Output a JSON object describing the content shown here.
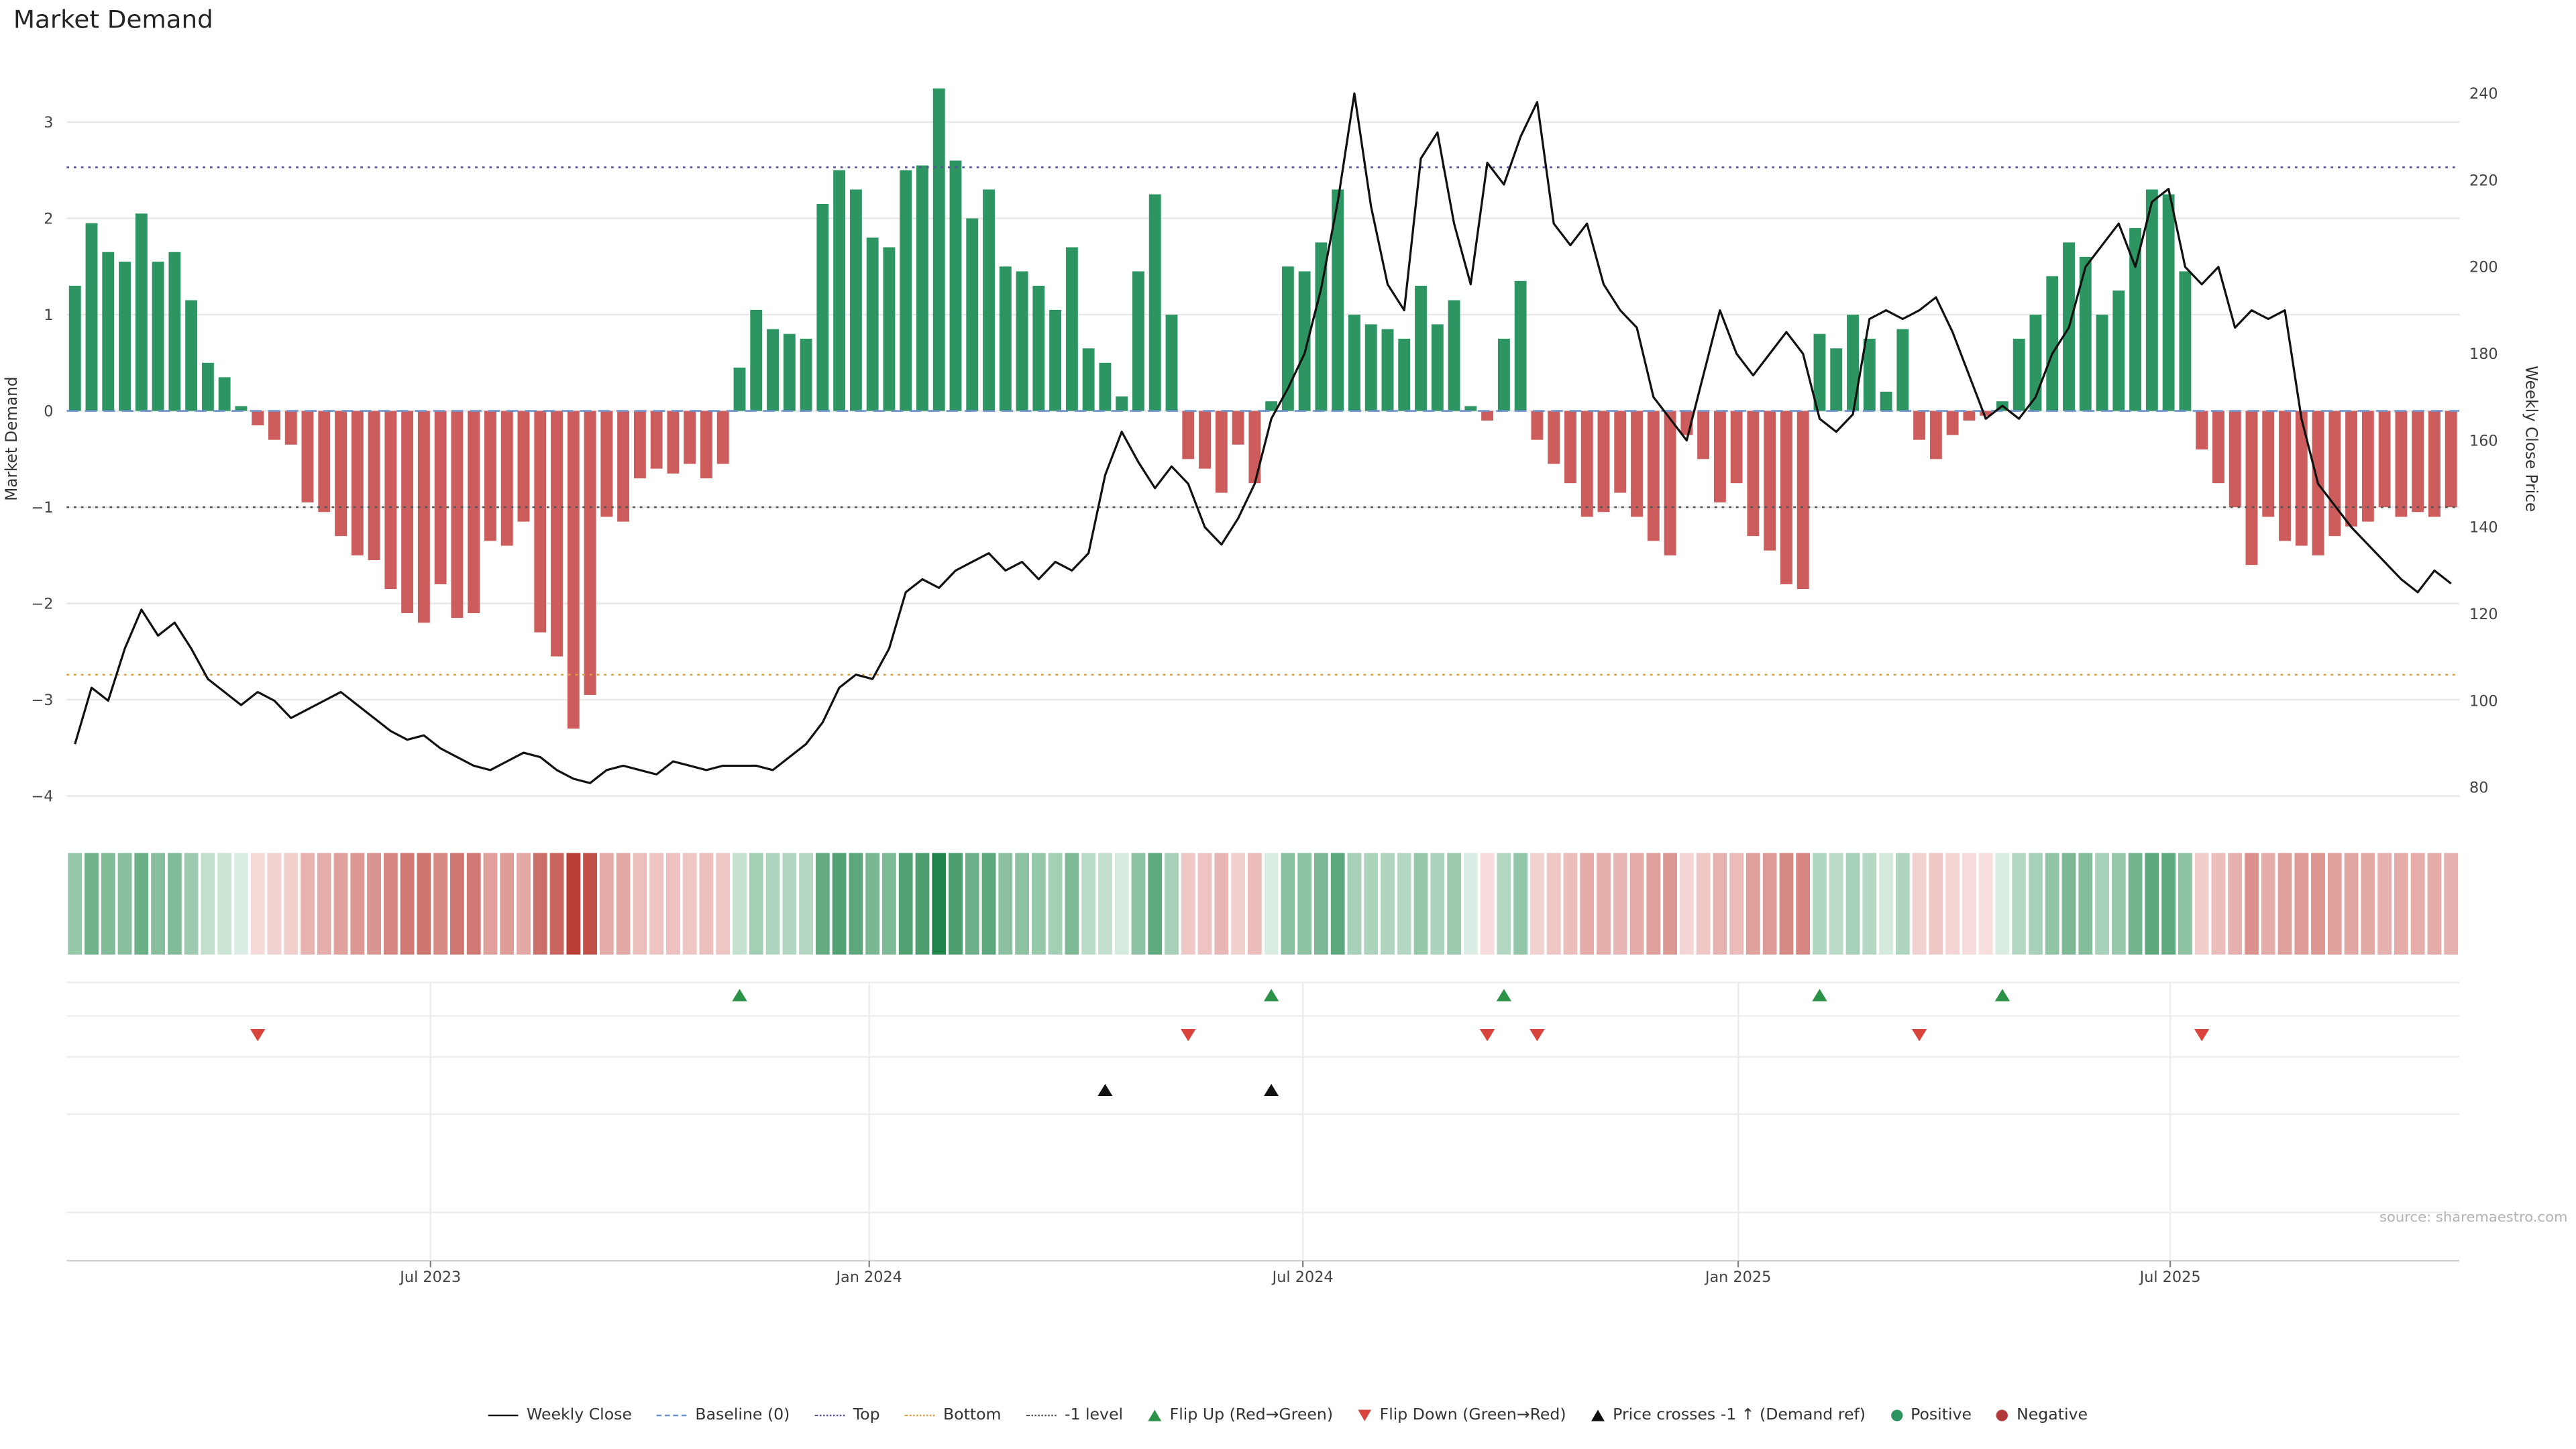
{
  "title": "Market Demand",
  "source": "source: sharemaestro.com",
  "axis_labels": {
    "left": "Market Demand",
    "right": "Weekly Close Price"
  },
  "chart_data": {
    "type": "mixed",
    "title": "Market Demand",
    "weeks": 144,
    "x_ticks": [
      {
        "label": "Jul 2023",
        "week": 21.9
      },
      {
        "label": "Jan 2024",
        "week": 48.3
      },
      {
        "label": "Jul 2024",
        "week": 74.4
      },
      {
        "label": "Jan 2025",
        "week": 100.6
      },
      {
        "label": "Jul 2025",
        "week": 126.6
      }
    ],
    "series": [
      {
        "name": "Market Demand",
        "type": "bar",
        "axis": "left",
        "values": [
          1.3,
          1.95,
          1.65,
          1.55,
          2.05,
          1.55,
          1.65,
          1.15,
          0.5,
          0.35,
          0.05,
          -0.15,
          -0.3,
          -0.35,
          -0.95,
          -1.05,
          -1.3,
          -1.5,
          -1.55,
          -1.85,
          -2.1,
          -2.2,
          -1.8,
          -2.15,
          -2.1,
          -1.35,
          -1.4,
          -1.15,
          -2.3,
          -2.55,
          -3.3,
          -2.95,
          -1.1,
          -1.15,
          -0.7,
          -0.6,
          -0.65,
          -0.55,
          -0.7,
          -0.55,
          0.45,
          1.05,
          0.85,
          0.8,
          0.75,
          2.15,
          2.5,
          2.3,
          1.8,
          1.7,
          2.5,
          2.55,
          3.35,
          2.6,
          2.0,
          2.3,
          1.5,
          1.45,
          1.3,
          1.05,
          1.7,
          0.65,
          0.5,
          0.15,
          1.45,
          2.25,
          1.0,
          -0.5,
          -0.6,
          -0.85,
          -0.35,
          -0.75,
          0.1,
          1.5,
          1.45,
          1.75,
          2.3,
          1.0,
          0.9,
          0.85,
          0.75,
          1.3,
          0.9,
          1.15,
          0.05,
          -0.1,
          0.75,
          1.35,
          -0.3,
          -0.55,
          -0.75,
          -1.1,
          -1.05,
          -0.85,
          -1.1,
          -1.35,
          -1.5,
          -0.25,
          -0.5,
          -0.95,
          -0.75,
          -1.3,
          -1.45,
          -1.8,
          -1.85,
          0.8,
          0.65,
          1.0,
          0.75,
          0.2,
          0.85,
          -0.3,
          -0.5,
          -0.25,
          -0.1,
          -0.05,
          0.1,
          0.75,
          1.0,
          1.4,
          1.75,
          1.6,
          1.0,
          1.25,
          1.9,
          2.3,
          2.25,
          1.45,
          -0.4,
          -0.75,
          -1.0,
          -1.6,
          -1.1,
          -1.35,
          -1.4,
          -1.5,
          -1.3,
          -1.2,
          -1.15,
          -1.0,
          -1.1,
          -1.05,
          -1.1,
          -1.0
        ]
      },
      {
        "name": "Weekly Close",
        "type": "line",
        "axis": "right",
        "values": [
          90,
          103,
          100,
          112,
          121,
          115,
          118,
          112,
          105,
          102,
          99,
          102,
          100,
          96,
          98,
          100,
          102,
          99,
          96,
          93,
          91,
          92,
          89,
          87,
          85,
          84,
          86,
          88,
          87,
          84,
          82,
          81,
          84,
          85,
          84,
          83,
          86,
          85,
          84,
          85,
          85,
          85,
          84,
          87,
          90,
          95,
          103,
          106,
          105,
          112,
          125,
          128,
          126,
          130,
          132,
          134,
          130,
          132,
          128,
          132,
          130,
          134,
          152,
          162,
          155,
          149,
          154,
          150,
          140,
          136,
          142,
          150,
          165,
          172,
          180,
          195,
          215,
          240,
          214,
          196,
          190,
          225,
          231,
          210,
          196,
          224,
          219,
          230,
          238,
          210,
          205,
          210,
          196,
          190,
          186,
          170,
          165,
          160,
          175,
          190,
          180,
          175,
          180,
          185,
          180,
          165,
          162,
          166,
          188,
          190,
          188,
          190,
          193,
          185,
          175,
          165,
          168,
          165,
          170,
          180,
          186,
          200,
          205,
          210,
          200,
          215,
          218,
          200,
          196,
          200,
          186,
          190,
          188,
          190,
          165,
          150,
          145,
          140,
          136,
          132,
          128,
          125,
          130,
          127
        ]
      }
    ],
    "y_left": {
      "label": "Market Demand",
      "ticks": [
        3,
        2,
        1,
        0,
        -1,
        -2,
        -3,
        -4
      ],
      "min": -4.235,
      "max": 3.622
    },
    "y_right": {
      "label": "Weekly Close Price",
      "ticks": [
        240,
        220,
        200,
        180,
        160,
        140,
        120,
        100,
        80
      ],
      "min": 72.8,
      "max": 247.2
    },
    "ref_lines": [
      {
        "name": "Baseline (0)",
        "value": 0,
        "style": "dashed",
        "color": "#6b93c9"
      },
      {
        "name": "Top",
        "value": 2.53,
        "style": "dotted",
        "color": "#54549b"
      },
      {
        "name": "Bottom",
        "value": -2.74,
        "style": "dotted",
        "color": "#dd9f3f"
      },
      {
        "name": "-1 level",
        "value": -1,
        "style": "dotted",
        "color": "#555555"
      }
    ],
    "markers": {
      "flip_up": {
        "label": "Flip Up (Red→Green)",
        "weeks": [
          40,
          72,
          86,
          105,
          116
        ],
        "color": "#2b9348"
      },
      "flip_down": {
        "label": "Flip Down (Green→Red)",
        "weeks": [
          11,
          67,
          85,
          88,
          111,
          128
        ],
        "color": "#d9453d"
      },
      "price_cross": {
        "label": "Price crosses -1 ↑ (Demand ref)",
        "weeks": [
          62,
          72
        ],
        "color": "#111111"
      }
    },
    "colors": {
      "positive": "#2d9561",
      "negative": "#cd5c5c",
      "line": "#111111",
      "grid": "#e8e8e8",
      "marker_grid": "#ededed",
      "axis_line": "#cfcfcf",
      "heat_pos_strong": "#1e8449",
      "heat_neg_strong": "#b93a32"
    }
  },
  "legend": {
    "items": [
      {
        "label": "Weekly Close",
        "symbol": "line-solid",
        "color": "#111111"
      },
      {
        "label": "Baseline (0)",
        "symbol": "line-dashed",
        "color": "#6b93c9"
      },
      {
        "label": "Top",
        "symbol": "line-dotted",
        "color": "#54549b"
      },
      {
        "label": "Bottom",
        "symbol": "line-dotted",
        "color": "#dd9f3f"
      },
      {
        "label": "-1 level",
        "symbol": "line-dotted",
        "color": "#555555"
      },
      {
        "label": "Flip Up (Red→Green)",
        "symbol": "triangle-up",
        "color": "#2b9348"
      },
      {
        "label": "Flip Down (Green→Red)",
        "symbol": "triangle-down",
        "color": "#d9453d"
      },
      {
        "label": "Price crosses -1 ↑ (Demand ref)",
        "symbol": "triangle-up",
        "color": "#111111"
      },
      {
        "label": "Positive",
        "symbol": "dot",
        "color": "#2d9561"
      },
      {
        "label": "Negative",
        "symbol": "dot",
        "color": "#b03a3a"
      }
    ]
  }
}
